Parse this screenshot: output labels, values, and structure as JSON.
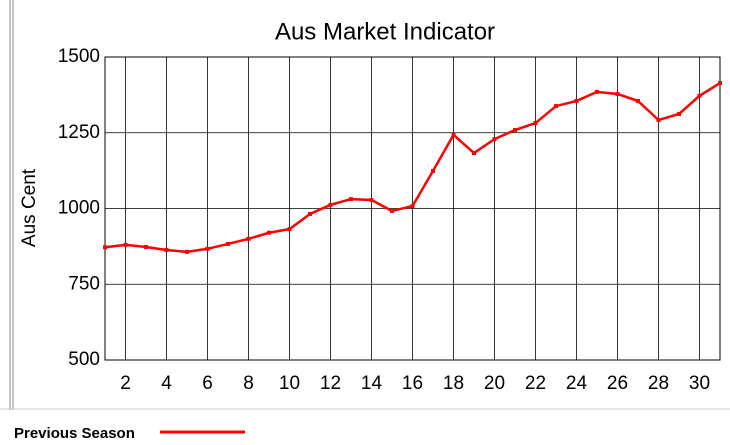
{
  "chart_data": {
    "type": "line",
    "title": "Aus Market Indicator",
    "y_label": "Aus Cent",
    "x": [
      1,
      2,
      3,
      4,
      5,
      6,
      7,
      8,
      9,
      10,
      11,
      12,
      13,
      14,
      15,
      16,
      17,
      18,
      19,
      20,
      21,
      22,
      23,
      24,
      25,
      26,
      27,
      28,
      29,
      30,
      31
    ],
    "series": [
      {
        "name": "Previous Season",
        "color": "#ff0000",
        "values": [
          872,
          880,
          873,
          863,
          857,
          867,
          883,
          900,
          920,
          932,
          982,
          1012,
          1031,
          1028,
          992,
          1008,
          1124,
          1243,
          1183,
          1229,
          1259,
          1282,
          1338,
          1355,
          1385,
          1378,
          1355,
          1292,
          1312,
          1372,
          1414
        ]
      }
    ],
    "xlim": [
      1,
      31
    ],
    "xticks": [
      2,
      4,
      6,
      8,
      10,
      12,
      14,
      16,
      18,
      20,
      22,
      24,
      26,
      28,
      30
    ],
    "ylim": [
      500,
      1500
    ],
    "yticks": [
      500,
      750,
      1000,
      1250,
      1500
    ],
    "grid": true,
    "legend": "bottom-left"
  }
}
